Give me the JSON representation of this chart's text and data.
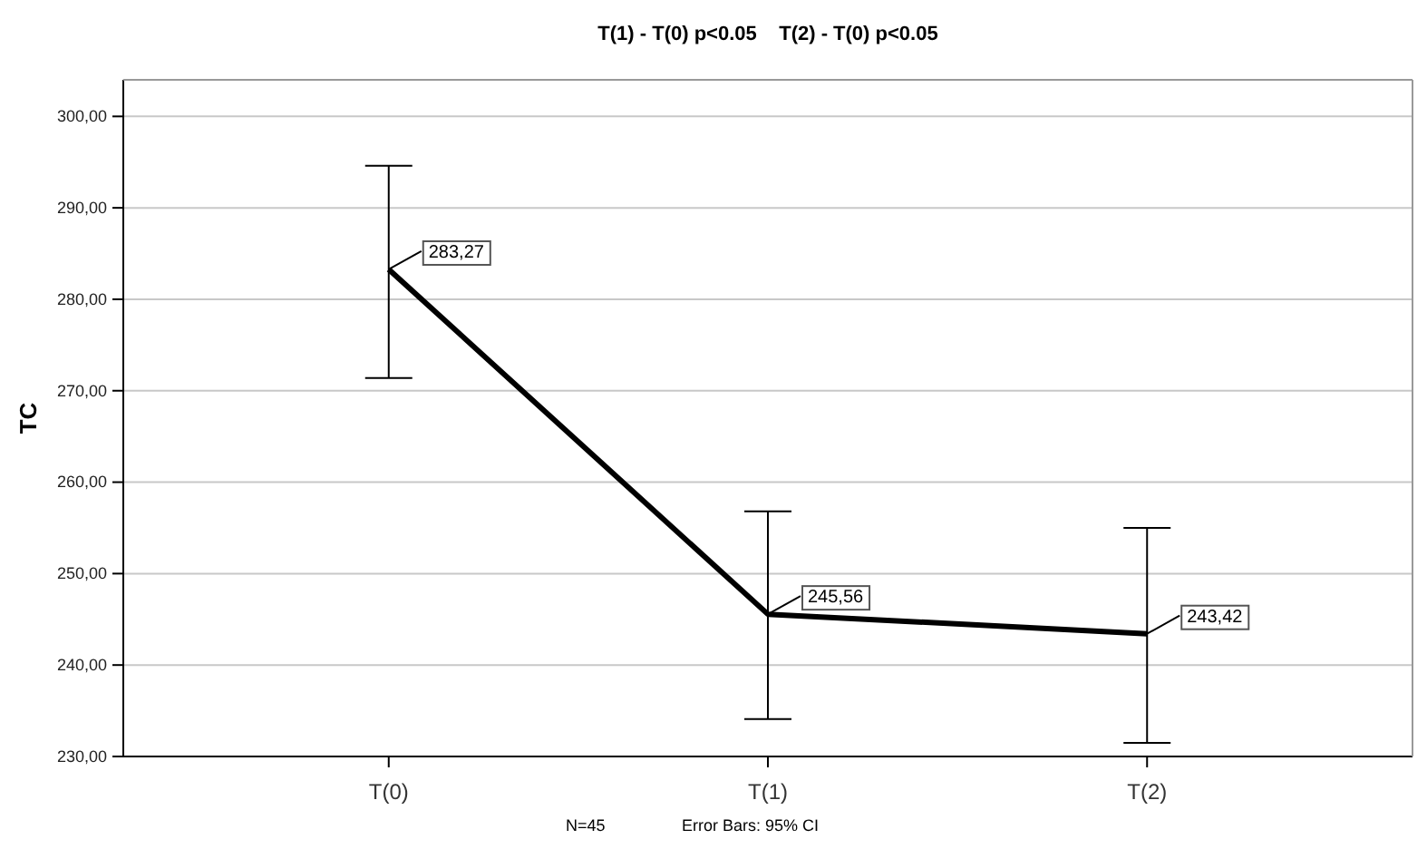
{
  "chart_data": {
    "type": "line",
    "title": "T(1) - T(0) p<0.05    T(2) - T(0) p<0.05",
    "ylabel": "TC",
    "categories": [
      "T(0)",
      "T(1)",
      "T(2)"
    ],
    "series": [
      {
        "color": "#000000",
        "values": [
          283.27,
          245.56,
          243.42
        ],
        "errors": [
          [
            271.4,
            294.6
          ],
          [
            234.1,
            256.8
          ],
          [
            231.5,
            255.0
          ]
        ],
        "value_labels": [
          "283,27",
          "245,56",
          "243,42"
        ]
      }
    ],
    "ylim": [
      230,
      304
    ],
    "yticks": [
      {
        "value": 230,
        "label": "230,00"
      },
      {
        "value": 240,
        "label": "240,00"
      },
      {
        "value": 250,
        "label": "250,00"
      },
      {
        "value": 260,
        "label": "260,00"
      },
      {
        "value": 270,
        "label": "270,00"
      },
      {
        "value": 280,
        "label": "280,00"
      },
      {
        "value": 290,
        "label": "290,00"
      },
      {
        "value": 300,
        "label": "300,00"
      }
    ],
    "grid": "y",
    "marker": "none",
    "line_style": "solid",
    "annotations": [
      "N=45",
      "Error Bars: 95% CI"
    ]
  }
}
